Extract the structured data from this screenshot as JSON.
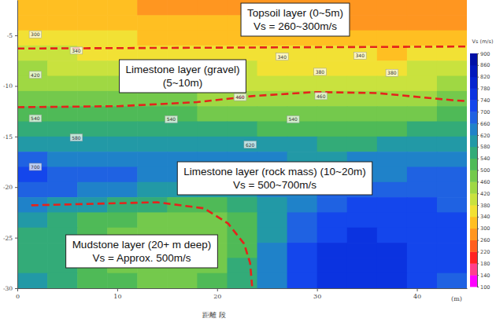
{
  "chart_data": {
    "type": "heatmap",
    "xlabel": "距離 段",
    "x_unit_label": "(m)",
    "xlim": [
      0,
      45
    ],
    "xticks": [
      0,
      10,
      20,
      30,
      40
    ],
    "ylim": [
      -1.5,
      -30
    ],
    "yticks": [
      -5,
      -10,
      -15,
      -20,
      -25,
      -30
    ],
    "x_bins": [
      0,
      3,
      6,
      9,
      12,
      15,
      18,
      21,
      24,
      27,
      30,
      33,
      36,
      39,
      42,
      45
    ],
    "y_bins": [
      -1.5,
      -3,
      -4.5,
      -6,
      -7.5,
      -9,
      -10.5,
      -12,
      -13.5,
      -15,
      -16.5,
      -18,
      -19.5,
      -21,
      -22.5,
      -24,
      -25.5,
      -27,
      -28.5,
      -30
    ],
    "cells": [
      [
        310,
        305,
        300,
        300,
        295,
        290,
        290,
        285,
        285,
        280,
        275,
        275,
        270,
        270,
        270
      ],
      [
        330,
        325,
        320,
        315,
        310,
        305,
        305,
        300,
        300,
        295,
        290,
        290,
        285,
        285,
        285
      ],
      [
        355,
        350,
        345,
        340,
        335,
        330,
        330,
        325,
        320,
        315,
        310,
        310,
        305,
        305,
        305
      ],
      [
        385,
        380,
        375,
        370,
        365,
        360,
        360,
        355,
        350,
        345,
        340,
        340,
        335,
        340,
        345
      ],
      [
        420,
        410,
        405,
        400,
        395,
        390,
        385,
        380,
        375,
        370,
        365,
        370,
        375,
        380,
        385
      ],
      [
        450,
        440,
        435,
        430,
        425,
        420,
        415,
        410,
        405,
        400,
        400,
        405,
        410,
        415,
        420
      ],
      [
        480,
        475,
        470,
        465,
        460,
        460,
        455,
        450,
        440,
        440,
        440,
        445,
        450,
        455,
        460
      ],
      [
        530,
        520,
        510,
        505,
        500,
        500,
        495,
        490,
        485,
        480,
        480,
        485,
        490,
        495,
        500
      ],
      [
        570,
        560,
        555,
        550,
        545,
        545,
        540,
        540,
        535,
        530,
        530,
        530,
        535,
        540,
        545
      ],
      [
        610,
        600,
        595,
        590,
        585,
        585,
        590,
        600,
        590,
        580,
        575,
        575,
        580,
        585,
        590
      ],
      [
        660,
        650,
        640,
        630,
        625,
        620,
        620,
        625,
        620,
        615,
        615,
        620,
        625,
        630,
        635
      ],
      [
        700,
        690,
        680,
        670,
        655,
        640,
        635,
        635,
        635,
        640,
        645,
        650,
        655,
        660,
        660
      ],
      [
        670,
        660,
        650,
        630,
        615,
        605,
        600,
        605,
        620,
        645,
        665,
        675,
        680,
        680,
        680
      ],
      [
        620,
        600,
        580,
        560,
        545,
        535,
        535,
        550,
        590,
        650,
        690,
        700,
        700,
        700,
        695
      ],
      [
        590,
        560,
        530,
        505,
        495,
        490,
        495,
        520,
        580,
        660,
        710,
        720,
        720,
        715,
        705
      ],
      [
        570,
        545,
        510,
        490,
        480,
        475,
        485,
        520,
        600,
        680,
        730,
        740,
        735,
        725,
        705
      ],
      [
        565,
        540,
        505,
        485,
        470,
        470,
        485,
        525,
        620,
        700,
        750,
        760,
        750,
        730,
        700
      ],
      [
        570,
        545,
        510,
        490,
        475,
        480,
        495,
        540,
        640,
        720,
        770,
        770,
        755,
        730,
        700
      ],
      [
        580,
        555,
        520,
        500,
        490,
        495,
        510,
        555,
        650,
        730,
        770,
        770,
        750,
        725,
        695
      ]
    ],
    "colorbar_title": "Vs (m/s)",
    "colorbar_range": [
      100,
      900
    ],
    "colorbar_ticks": [
      100,
      140,
      180,
      220,
      260,
      300,
      340,
      380,
      420,
      460,
      500,
      540,
      580,
      620,
      660,
      700,
      740,
      780,
      820,
      860,
      900
    ],
    "contour_labels": [
      {
        "x": 1.8,
        "y": -4.9,
        "value": 300
      },
      {
        "x": 5.9,
        "y": -6.5,
        "value": 340
      },
      {
        "x": 1.8,
        "y": -8.9,
        "value": 420
      },
      {
        "x": 26.5,
        "y": -7.1,
        "value": 340
      },
      {
        "x": 34.3,
        "y": -7.0,
        "value": 340
      },
      {
        "x": 30.3,
        "y": -8.6,
        "value": 380
      },
      {
        "x": 37.5,
        "y": -8.7,
        "value": 380
      },
      {
        "x": 22.3,
        "y": -11.1,
        "value": 460
      },
      {
        "x": 30.4,
        "y": -11.0,
        "value": 460
      },
      {
        "x": 1.8,
        "y": -13.2,
        "value": 540
      },
      {
        "x": 5.9,
        "y": -15.1,
        "value": 580
      },
      {
        "x": 15.4,
        "y": -13.3,
        "value": 540
      },
      {
        "x": 27.6,
        "y": -13.3,
        "value": 540
      },
      {
        "x": 23.3,
        "y": -15.8,
        "value": 620
      },
      {
        "x": 1.8,
        "y": -18.0,
        "value": 700
      }
    ],
    "boundaries": [
      {
        "x": [
          0,
          45
        ],
        "y": [
          -6.3,
          -6.1
        ]
      },
      {
        "x": [
          0,
          10.1,
          18,
          23.5,
          29.8,
          36,
          43.5,
          45
        ],
        "y": [
          -12.1,
          -12.0,
          -11.6,
          -11.0,
          -10.6,
          -10.7,
          -11.4,
          -11.5
        ]
      },
      {
        "x": [
          1.4,
          14.0,
          18.7,
          21.1,
          22.7,
          23.3,
          23.5
        ],
        "y": [
          -21.8,
          -21.5,
          -22.1,
          -23.6,
          -25.6,
          -27.5,
          -29.8
        ]
      }
    ],
    "annotations": [
      {
        "lines": [
          "Topsoil layer (0~5m)",
          "Vs = 260~300m/s"
        ]
      },
      {
        "lines": [
          "Limestone layer (gravel)",
          "(5~10m)"
        ]
      },
      {
        "lines": [
          "Limestone layer (rock mass) (10~20m)",
          "Vs = 500~700m/s"
        ]
      },
      {
        "lines": [
          "Mudstone layer (20+ m deep)",
          "Vs = Approx. 500m/s"
        ]
      }
    ]
  }
}
